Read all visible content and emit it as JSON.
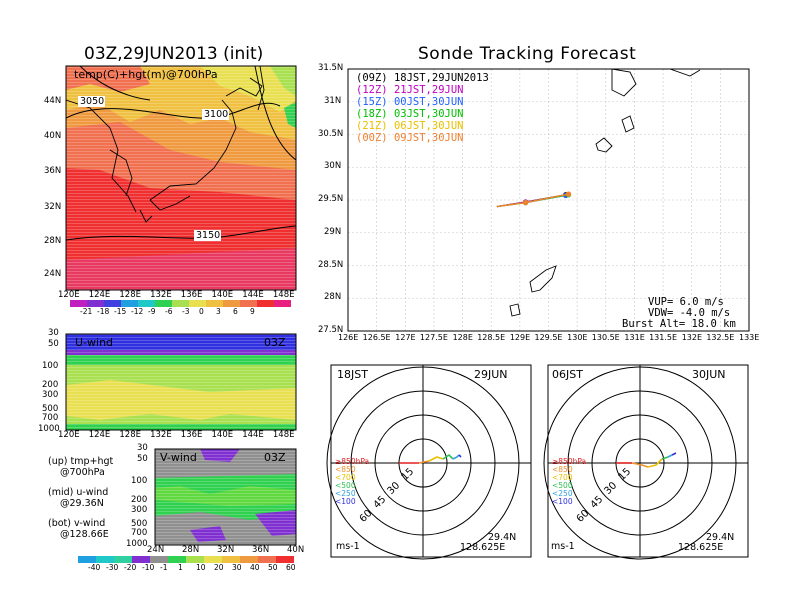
{
  "page": {
    "left_title": "03Z,29JUN2013 (init)",
    "right_title": "Sonde Tracking Forecast"
  },
  "colors": {
    "deep_red": "#f03030",
    "red": "#f07050",
    "orange": "#f09a40",
    "light_orange": "#f0c040",
    "yellow": "#e8e050",
    "light_green": "#a8e050",
    "green": "#30d050",
    "dark_blue": "#3030e0",
    "purple": "#8030d0",
    "gray": "#909090",
    "track_09z": "#000000",
    "track_12z": "#c000c0",
    "track_15z": "#2060ff",
    "track_18z": "#00c000",
    "track_21z": "#e8c000",
    "track_00z": "#f08030"
  },
  "chart_data": [
    {
      "type": "heatmap",
      "panel": "upper-left",
      "title": "temp(C)+hgt(m)@700hPa",
      "x_ticks": [
        "120E",
        "124E",
        "128E",
        "132E",
        "136E",
        "140E",
        "144E",
        "148E"
      ],
      "y_ticks": [
        "24N",
        "28N",
        "32N",
        "36N",
        "40N",
        "44N"
      ],
      "xlim": [
        120,
        150
      ],
      "ylim": [
        22,
        47
      ],
      "contour_labels": [
        "3050",
        "3100",
        "3150"
      ],
      "colorbar": [
        "-21",
        "-18",
        "-15",
        "-12",
        "-9",
        "-6",
        "-3",
        "0",
        "3",
        "6",
        "9"
      ]
    },
    {
      "type": "heatmap",
      "panel": "middle-left",
      "title": "U-wind",
      "time_label": "03Z",
      "x_ticks": [
        "120E",
        "124E",
        "128E",
        "132E",
        "136E",
        "140E",
        "144E",
        "148E"
      ],
      "y_ticks": [
        "30",
        "50",
        "100",
        "200",
        "300",
        "500",
        "700",
        "1000"
      ]
    },
    {
      "type": "heatmap",
      "panel": "lower-left",
      "title": "V-wind",
      "time_label": "03Z",
      "x_ticks": [
        "24N",
        "28N",
        "32N",
        "36N",
        "40N"
      ],
      "y_ticks": [
        "30",
        "50",
        "100",
        "200",
        "300",
        "500",
        "700",
        "1000"
      ],
      "colorbar": [
        "-40",
        "-30",
        "-20",
        "-10",
        "-1",
        "1",
        "10",
        "20",
        "30",
        "40",
        "50",
        "60"
      ]
    },
    {
      "type": "line",
      "panel": "track-map",
      "x_ticks": [
        "126E",
        "126.5E",
        "127E",
        "127.5E",
        "128E",
        "128.5E",
        "129E",
        "129.5E",
        "130E",
        "130.5E",
        "131E",
        "131.5E",
        "132E",
        "132.5E",
        "133E"
      ],
      "y_ticks": [
        "27.5N",
        "28N",
        "28.5N",
        "29N",
        "29.5N",
        "30N",
        "30.5N",
        "31N",
        "31.5N"
      ],
      "xlim": [
        126,
        133
      ],
      "ylim": [
        27.5,
        31.5
      ],
      "legend": [
        {
          "code": "(09Z)",
          "text": "18JST,29JUN2013"
        },
        {
          "code": "(12Z)",
          "text": "21JST,29JUN"
        },
        {
          "code": "(15Z)",
          "text": "00JST,30JUN"
        },
        {
          "code": "(18Z)",
          "text": "03JST,30JUN"
        },
        {
          "code": "(21Z)",
          "text": "06JST,30JUN"
        },
        {
          "code": "(00Z)",
          "text": "09JST,30JUN"
        }
      ],
      "series": [
        {
          "name": "09Z",
          "x": [
            128.6,
            129.1,
            129.8
          ],
          "y": [
            29.4,
            29.47,
            29.58
          ]
        },
        {
          "name": "12Z",
          "x": [
            128.6,
            129.1,
            129.8
          ],
          "y": [
            29.4,
            29.47,
            29.57
          ]
        },
        {
          "name": "15Z",
          "x": [
            128.6,
            129.1,
            129.8
          ],
          "y": [
            29.4,
            29.46,
            29.57
          ]
        },
        {
          "name": "18Z",
          "x": [
            128.6,
            129.1,
            129.85
          ],
          "y": [
            29.4,
            29.46,
            29.58
          ]
        },
        {
          "name": "21Z",
          "x": [
            128.6,
            129.1,
            129.85
          ],
          "y": [
            29.4,
            29.46,
            29.59
          ]
        },
        {
          "name": "00Z",
          "x": [
            128.6,
            129.1,
            129.85
          ],
          "y": [
            29.4,
            29.46,
            29.59
          ]
        }
      ],
      "info": {
        "vup": "VUP=  6.0  m/s",
        "vdw": "VDW=  -4.0  m/s",
        "burst": "Burst Alt=  18.0  km"
      }
    },
    {
      "type": "line",
      "panel": "hodograph-1",
      "title_left": "18JST",
      "title_right": "29JUN",
      "rings": [
        "15",
        "30",
        "45",
        "60"
      ],
      "levels": [
        "≥850hPa",
        "<850",
        "<700",
        "<500",
        "<250",
        "<100"
      ],
      "units": "ms-1",
      "lat": "29.4N",
      "lon": "128.625E"
    },
    {
      "type": "line",
      "panel": "hodograph-2",
      "title_left": "06JST",
      "title_right": "30JUN",
      "rings": [
        "15",
        "30",
        "45",
        "60"
      ],
      "levels": [
        "≥850hPa",
        "<850",
        "<700",
        "<500",
        "<250",
        "<100"
      ],
      "units": "ms-1",
      "lat": "29.4N",
      "lon": "128.625E"
    }
  ],
  "left_notes": [
    {
      "head": "(up) tmp+hgt",
      "sub": "@700hPa"
    },
    {
      "head": "(mid) u-wind",
      "sub": "@29.36N"
    },
    {
      "head": "(bot) v-wind",
      "sub": "@128.66E"
    }
  ]
}
